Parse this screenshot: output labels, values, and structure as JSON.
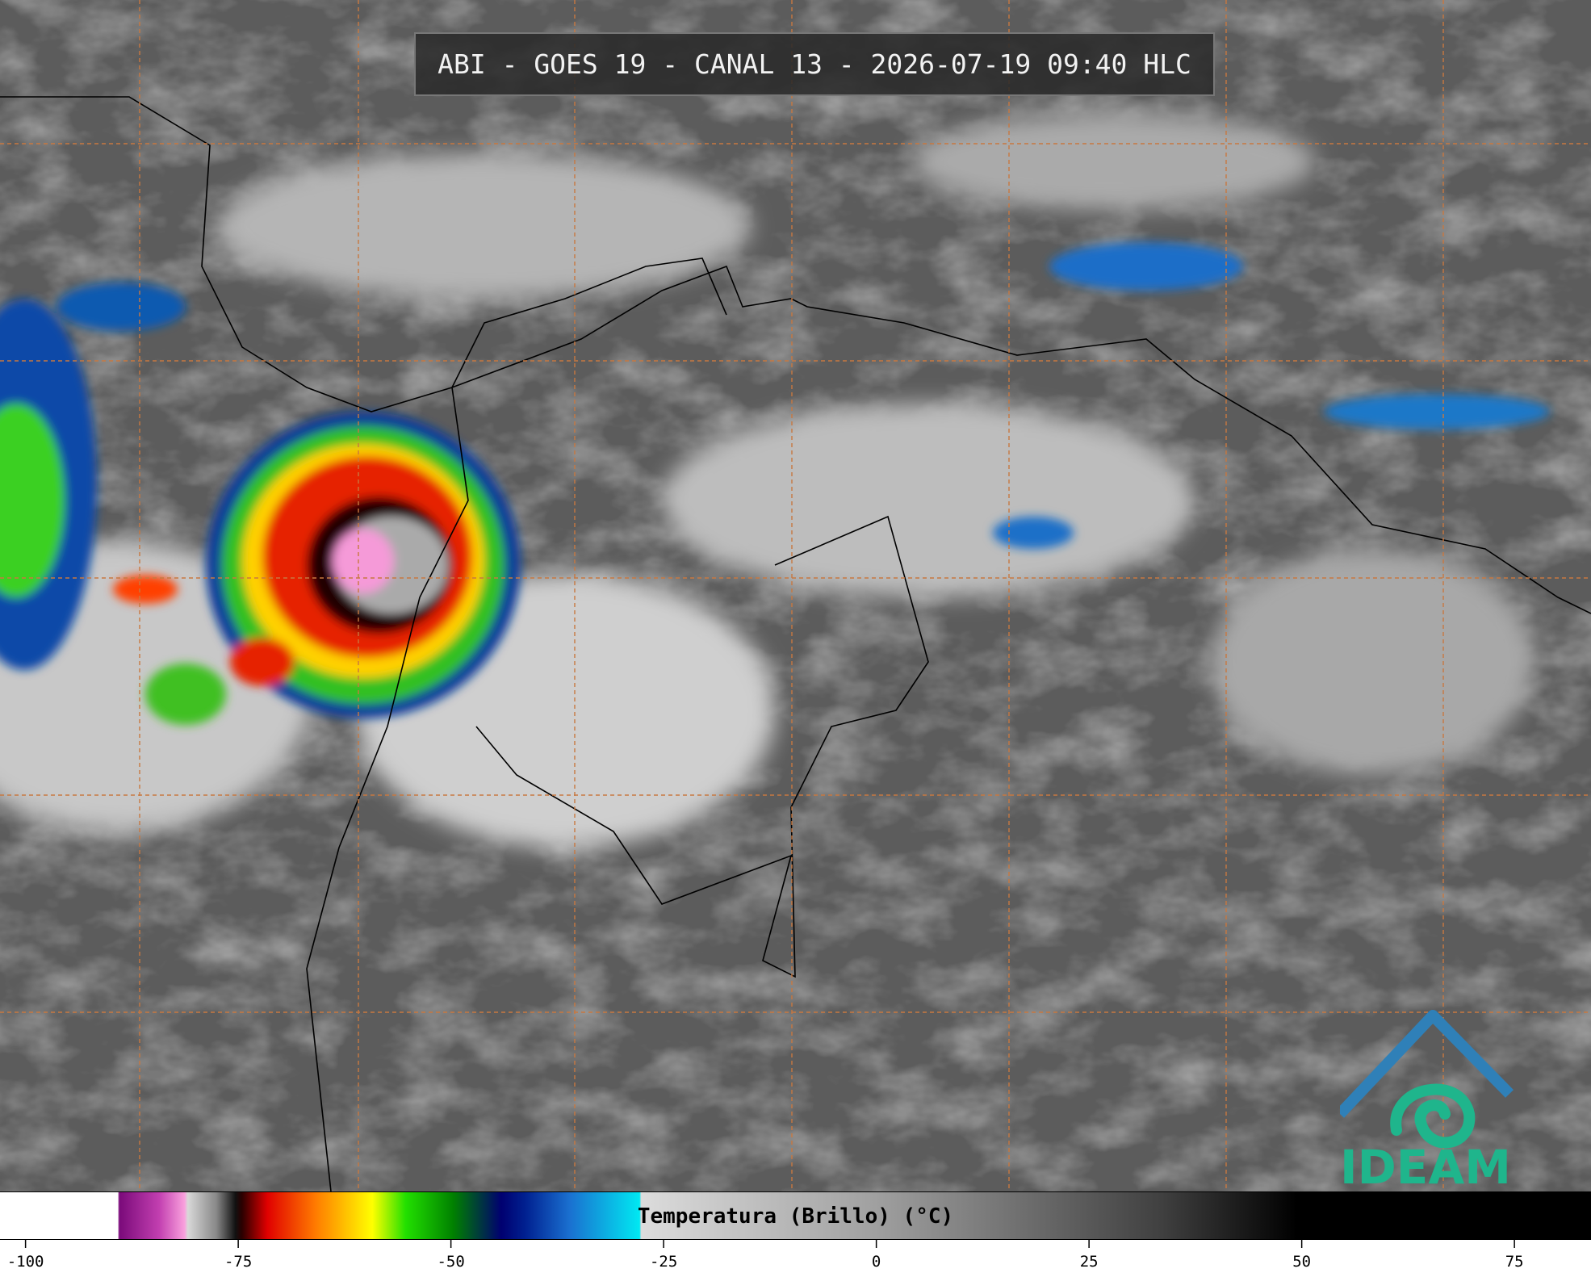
{
  "header": {
    "title": "ABI - GOES 19 - CANAL 13 - 2026-07-19 09:40 HLC"
  },
  "logo": {
    "text": "IDEAM"
  },
  "colorbar": {
    "label": "Temperatura (Brillo) (°C)",
    "range": [
      -103,
      84
    ],
    "ticks": [
      -100,
      -75,
      -50,
      -25,
      0,
      25,
      50,
      75
    ]
  }
}
